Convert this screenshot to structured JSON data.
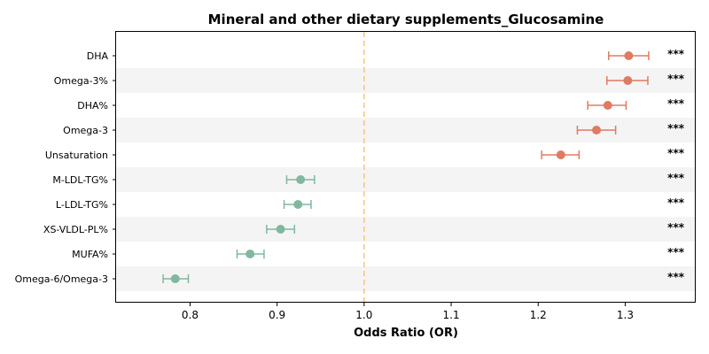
{
  "chart_data": {
    "type": "forest",
    "title": "Mineral and other dietary supplements_Glucosamine",
    "xlabel": "Odds Ratio (OR)",
    "ylabel": "",
    "xlim": [
      0.715,
      1.38
    ],
    "xticks": [
      0.8,
      0.9,
      1.0,
      1.1,
      1.2,
      1.3
    ],
    "xtick_labels": [
      "0.8",
      "0.9",
      "1.0",
      "1.1",
      "1.2",
      "1.3"
    ],
    "reference_line": 1.0,
    "colors": {
      "positive": "#e07b63",
      "negative": "#82b79f",
      "reference": "#f5c47d",
      "stripe": "#f4f4f4"
    },
    "rows": [
      {
        "label": "DHA",
        "or": 1.304,
        "lo": 1.281,
        "hi": 1.327,
        "sig": "***"
      },
      {
        "label": "Omega-3%",
        "or": 1.303,
        "lo": 1.279,
        "hi": 1.326,
        "sig": "***"
      },
      {
        "label": "DHA%",
        "or": 1.28,
        "lo": 1.257,
        "hi": 1.301,
        "sig": "***"
      },
      {
        "label": "Omega-3",
        "or": 1.267,
        "lo": 1.245,
        "hi": 1.289,
        "sig": "***"
      },
      {
        "label": "Unsaturation",
        "or": 1.226,
        "lo": 1.204,
        "hi": 1.247,
        "sig": "***"
      },
      {
        "label": "M-LDL-TG%",
        "or": 0.927,
        "lo": 0.911,
        "hi": 0.943,
        "sig": "***"
      },
      {
        "label": "L-LDL-TG%",
        "or": 0.924,
        "lo": 0.908,
        "hi": 0.939,
        "sig": "***"
      },
      {
        "label": "XS-VLDL-PL%",
        "or": 0.904,
        "lo": 0.888,
        "hi": 0.92,
        "sig": "***"
      },
      {
        "label": "MUFA%",
        "or": 0.869,
        "lo": 0.854,
        "hi": 0.885,
        "sig": "***"
      },
      {
        "label": "Omega-6/Omega-3",
        "or": 0.783,
        "lo": 0.769,
        "hi": 0.798,
        "sig": "***"
      }
    ]
  }
}
